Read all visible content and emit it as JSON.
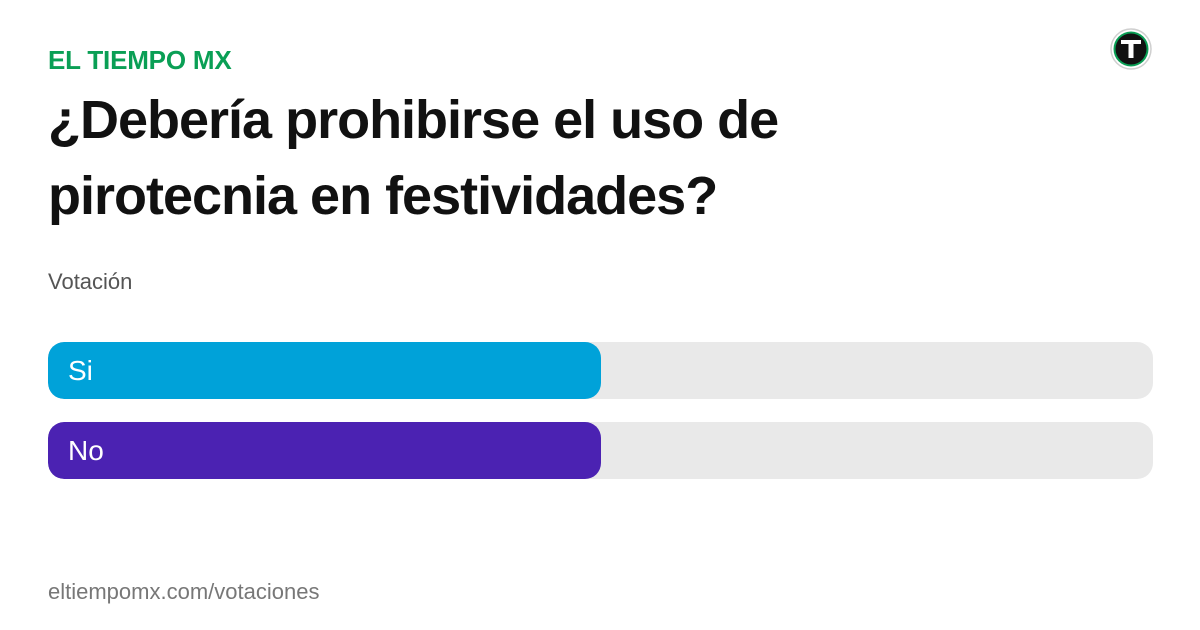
{
  "brand": {
    "name": "EL TIEMPO MX",
    "color": "#0a9f55"
  },
  "logo": {
    "icon": "el-tiempo-t-logo-icon",
    "letter": "T",
    "ring_color": "#0a9f55",
    "fill_color": "#111111"
  },
  "poll": {
    "question_line1": "¿Debería prohibirse el uso de",
    "question_line2": "pirotecnia en festividades?",
    "subtitle": "Votación",
    "options": [
      {
        "label": "Si",
        "fraction": 0.5,
        "color": "#00a2d9"
      },
      {
        "label": "No",
        "fraction": 0.5,
        "color": "#4b22b2"
      }
    ]
  },
  "footer": {
    "url": "eltiempomx.com/votaciones"
  }
}
